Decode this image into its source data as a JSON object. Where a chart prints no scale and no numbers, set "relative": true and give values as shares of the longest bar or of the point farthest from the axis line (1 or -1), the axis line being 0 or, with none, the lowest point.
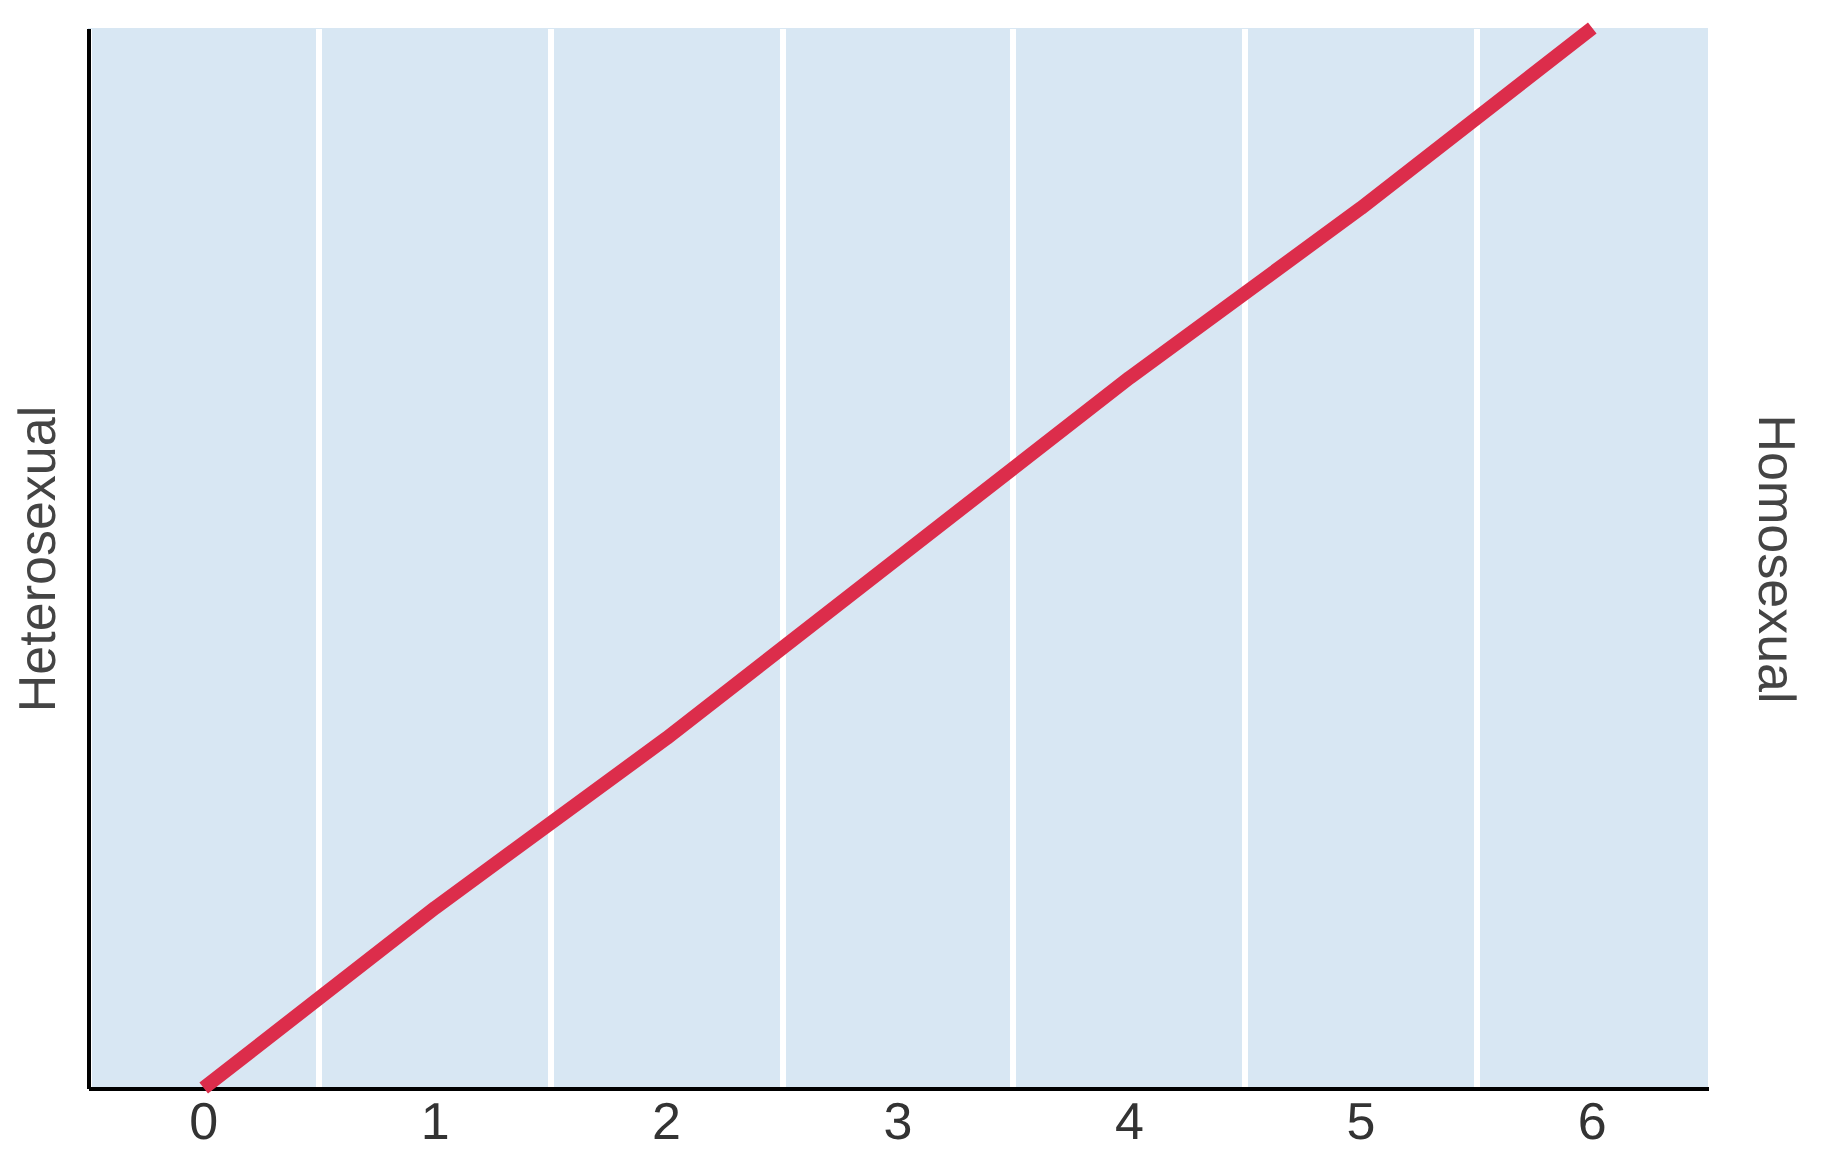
{
  "chart_data": {
    "type": "line",
    "relative": true,
    "ylabel": "Heterosexual",
    "y2label": "Homosexual",
    "categories": [
      "0",
      "1",
      "2",
      "3",
      "4",
      "5",
      "6"
    ],
    "series": [
      {
        "color": "#dc2d4b",
        "values": [
          0,
          0.17,
          0.33,
          0.5,
          0.67,
          0.83,
          1
        ]
      }
    ],
    "grid": "x",
    "marker": "none",
    "line_style": "solid"
  }
}
